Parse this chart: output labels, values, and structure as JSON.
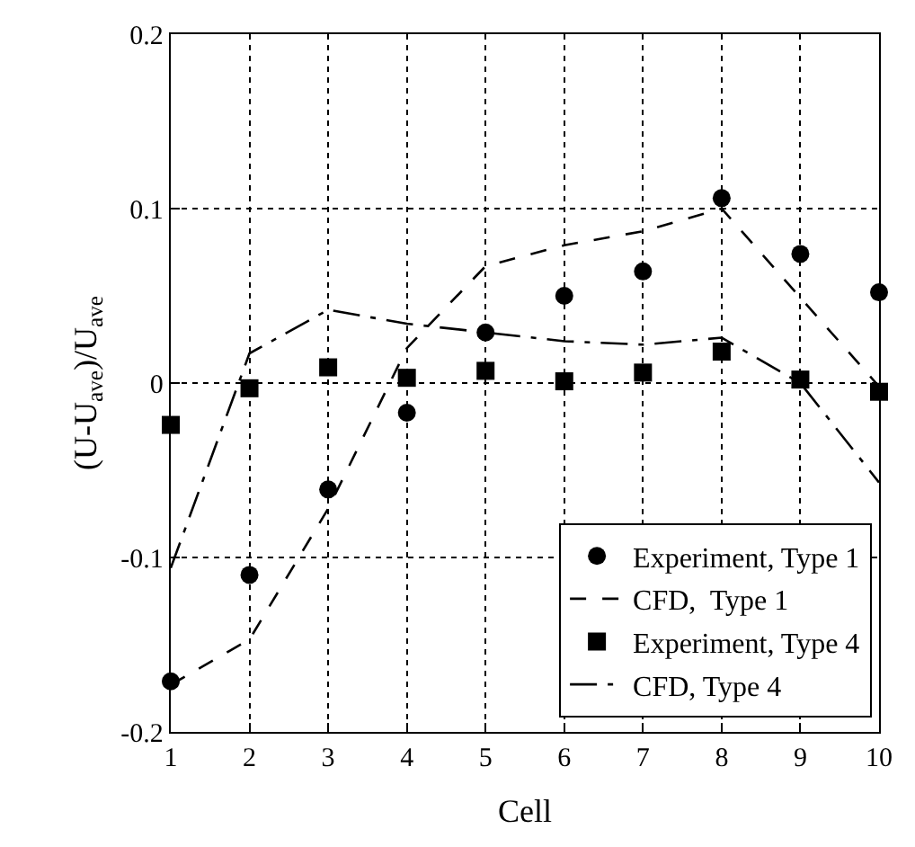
{
  "chart_data": {
    "type": "scatter",
    "xlabel": "Cell",
    "ylabel": "(U-U$_{ave}$)/U$_{ave}$",
    "x": [
      1,
      2,
      3,
      4,
      5,
      6,
      7,
      8,
      9,
      10
    ],
    "series": [
      {
        "name": "Experiment, Type 1",
        "color": "#000000",
        "marker": "circle",
        "values": [
          -0.171,
          -0.11,
          -0.061,
          -0.017,
          0.029,
          0.05,
          0.064,
          0.106,
          0.074,
          0.052
        ]
      },
      {
        "name": "CFD,  Type 1",
        "color": "#000000",
        "type": "line",
        "marker": "none",
        "line_style": "dashed",
        "values": [
          -0.173,
          -0.147,
          -0.072,
          0.02,
          0.067,
          0.079,
          0.087,
          0.1,
          0.049,
          -0.002
        ]
      },
      {
        "name": "Experiment, Type 4",
        "color": "#000000",
        "marker": "square",
        "values": [
          -0.024,
          -0.003,
          0.009,
          0.003,
          0.007,
          0.001,
          0.006,
          0.018,
          0.002,
          -0.005
        ]
      },
      {
        "name": "CFD, Type 4",
        "color": "#000000",
        "type": "line",
        "marker": "none",
        "line_style": "dashdot",
        "values": [
          -0.106,
          0.017,
          0.042,
          0.034,
          0.029,
          0.024,
          0.022,
          0.026,
          0.0,
          -0.057
        ]
      }
    ],
    "xlim": [
      1,
      10
    ],
    "xticks": [
      1,
      2,
      3,
      4,
      5,
      6,
      7,
      8,
      9,
      10
    ],
    "ylim": [
      -0.2,
      0.2
    ],
    "yticks": [
      -0.2,
      -0.1,
      0,
      0.1,
      0.2
    ],
    "grid": true,
    "legend": "bottom right"
  }
}
